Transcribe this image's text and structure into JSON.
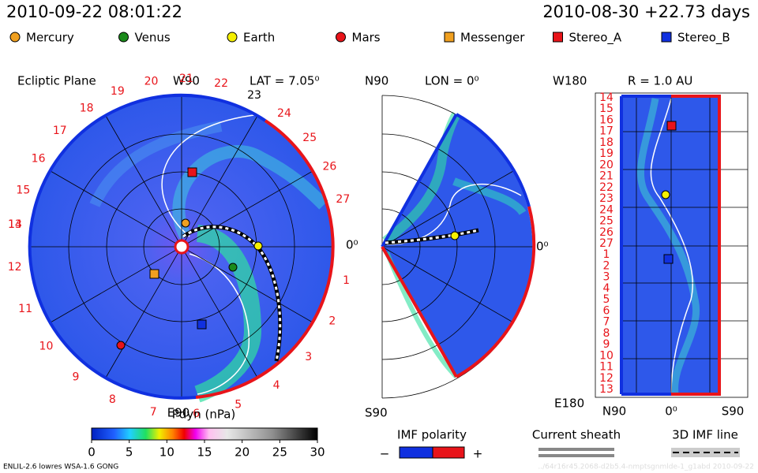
{
  "header": {
    "model_time": "2010-09-22 08:01:22",
    "start_time": "2010-08-30 +22.73 days"
  },
  "legend": [
    {
      "label": "Mercury",
      "shape": "circle",
      "color": "#f0a020"
    },
    {
      "label": "Venus",
      "shape": "circle",
      "color": "#1a8a1a"
    },
    {
      "label": "Earth",
      "shape": "circle",
      "color": "#f5f000"
    },
    {
      "label": "Mars",
      "shape": "circle",
      "color": "#e8141a"
    },
    {
      "label": "Messenger",
      "shape": "square",
      "color": "#f0a020"
    },
    {
      "label": "Stereo_A",
      "shape": "square",
      "color": "#e8141a"
    },
    {
      "label": "Stereo_B",
      "shape": "square",
      "color": "#1030e0"
    }
  ],
  "ecliptic": {
    "title": "Ecliptic Plane",
    "top": "W90",
    "bottom": "E90",
    "right": "0⁰",
    "lat": "LAT = 7.05⁰",
    "carrington_labels": [
      1,
      2,
      3,
      4,
      5,
      6,
      7,
      8,
      9,
      10,
      11,
      12,
      13,
      14,
      15,
      16,
      17,
      18,
      19,
      20,
      21,
      22,
      23,
      24,
      25,
      26,
      27
    ]
  },
  "meridional": {
    "top": "N90",
    "bottom": "S90",
    "right": "0⁰",
    "lon": "LON = 0⁰"
  },
  "radial": {
    "title": "R = 1.0 AU",
    "top": "W180",
    "bottom": "E180",
    "x_labels": [
      "N90",
      "0⁰",
      "S90"
    ],
    "y_labels": [
      14,
      15,
      16,
      17,
      18,
      19,
      20,
      21,
      22,
      23,
      24,
      25,
      26,
      27,
      1,
      2,
      3,
      4,
      5,
      6,
      7,
      8,
      9,
      10,
      11,
      12,
      13
    ]
  },
  "colorbar": {
    "title": "Pdyn (nPa)",
    "ticks": [
      0,
      5,
      10,
      15,
      20,
      25,
      30
    ]
  },
  "keys": {
    "imf_polarity": "IMF polarity",
    "minus": "−",
    "plus": "+",
    "current_sheath": "Current sheath",
    "imf_line": "3D IMF line"
  },
  "footer": {
    "model": "ENLIL-2.6 lowres WSA-1.6 GONG",
    "run_id": "../64r16r45.2068-d2b5.4-nmptsgnmlde-1_g1abd   2010-09-22"
  }
}
